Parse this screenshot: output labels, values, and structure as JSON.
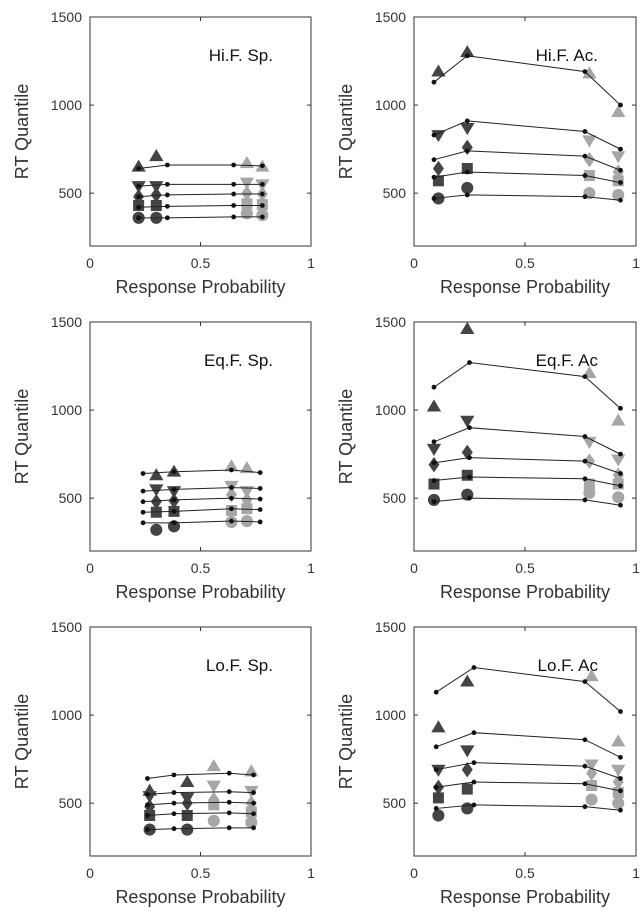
{
  "chart_data": [
    {
      "type": "scatter",
      "title": "Hi.F. Sp.",
      "xlabel": "Response Probability",
      "ylabel": "RT Quantile",
      "xlim": [
        0,
        1
      ],
      "ylim": [
        200,
        1500
      ],
      "xticks": [
        "0",
        "0.5",
        "1"
      ],
      "yticks": [
        "500",
        "1000",
        "1500"
      ],
      "model_x": [
        0.22,
        0.35,
        0.65,
        0.78
      ],
      "model_series": [
        {
          "values": [
            360,
            360,
            365,
            365
          ]
        },
        {
          "values": [
            420,
            425,
            430,
            430
          ]
        },
        {
          "values": [
            480,
            490,
            495,
            495
          ]
        },
        {
          "values": [
            540,
            550,
            550,
            550
          ]
        },
        {
          "values": [
            640,
            660,
            660,
            655
          ]
        }
      ],
      "data_series": [
        {
          "marker": "circle",
          "points": [
            [
              0.22,
              360
            ],
            [
              0.3,
              360
            ],
            [
              0.71,
              385
            ],
            [
              0.78,
              375
            ]
          ]
        },
        {
          "marker": "square",
          "points": [
            [
              0.22,
              430
            ],
            [
              0.3,
              430
            ],
            [
              0.71,
              440
            ],
            [
              0.78,
              435
            ]
          ]
        },
        {
          "marker": "diamond",
          "points": [
            [
              0.22,
              480
            ],
            [
              0.3,
              490
            ],
            [
              0.71,
              500
            ],
            [
              0.78,
              495
            ]
          ]
        },
        {
          "marker": "triangle-down",
          "points": [
            [
              0.22,
              540
            ],
            [
              0.3,
              540
            ],
            [
              0.71,
              560
            ],
            [
              0.78,
              550
            ]
          ]
        },
        {
          "marker": "triangle-up",
          "points": [
            [
              0.22,
              650
            ],
            [
              0.3,
              710
            ],
            [
              0.71,
              670
            ],
            [
              0.78,
              650
            ]
          ]
        }
      ]
    },
    {
      "type": "scatter",
      "title": "Hi.F. Ac.",
      "xlabel": "Response Probability",
      "ylabel": "RT Quantile",
      "xlim": [
        0,
        1
      ],
      "ylim": [
        200,
        1500
      ],
      "xticks": [
        "0",
        "0.5",
        "1"
      ],
      "yticks": [
        "500",
        "1000",
        "1500"
      ],
      "model_x": [
        0.09,
        0.24,
        0.77,
        0.93
      ],
      "model_series": [
        {
          "values": [
            470,
            490,
            480,
            460
          ]
        },
        {
          "values": [
            590,
            620,
            600,
            560
          ]
        },
        {
          "values": [
            690,
            740,
            710,
            630
          ]
        },
        {
          "values": [
            830,
            910,
            850,
            750
          ]
        },
        {
          "values": [
            1130,
            1280,
            1190,
            1000
          ]
        }
      ],
      "data_series": [
        {
          "marker": "circle",
          "points": [
            [
              0.11,
              470
            ],
            [
              0.24,
              530
            ],
            [
              0.79,
              500
            ],
            [
              0.92,
              490
            ]
          ]
        },
        {
          "marker": "square",
          "points": [
            [
              0.11,
              570
            ],
            [
              0.24,
              640
            ],
            [
              0.79,
              600
            ],
            [
              0.92,
              570
            ]
          ]
        },
        {
          "marker": "diamond",
          "points": [
            [
              0.11,
              640
            ],
            [
              0.24,
              760
            ],
            [
              0.79,
              690
            ],
            [
              0.92,
              620
            ]
          ]
        },
        {
          "marker": "triangle-down",
          "points": [
            [
              0.11,
              830
            ],
            [
              0.24,
              870
            ],
            [
              0.79,
              800
            ],
            [
              0.92,
              710
            ]
          ]
        },
        {
          "marker": "triangle-up",
          "points": [
            [
              0.11,
              1190
            ],
            [
              0.24,
              1300
            ],
            [
              0.79,
              1180
            ],
            [
              0.92,
              960
            ]
          ]
        }
      ]
    },
    {
      "type": "scatter",
      "title": "Eq.F. Sp.",
      "xlabel": "Response Probability",
      "ylabel": "RT Quantile",
      "xlim": [
        0,
        1
      ],
      "ylim": [
        200,
        1500
      ],
      "xticks": [
        "0",
        "0.5",
        "1"
      ],
      "yticks": [
        "500",
        "1000",
        "1500"
      ],
      "model_x": [
        0.24,
        0.38,
        0.64,
        0.77
      ],
      "model_series": [
        {
          "values": [
            360,
            360,
            370,
            365
          ]
        },
        {
          "values": [
            420,
            425,
            440,
            435
          ]
        },
        {
          "values": [
            480,
            490,
            500,
            495
          ]
        },
        {
          "values": [
            540,
            550,
            560,
            555
          ]
        },
        {
          "values": [
            640,
            650,
            660,
            645
          ]
        }
      ],
      "data_series": [
        {
          "marker": "circle",
          "points": [
            [
              0.3,
              320
            ],
            [
              0.38,
              340
            ],
            [
              0.64,
              365
            ],
            [
              0.71,
              370
            ]
          ]
        },
        {
          "marker": "square",
          "points": [
            [
              0.3,
              420
            ],
            [
              0.38,
              425
            ],
            [
              0.64,
              430
            ],
            [
              0.71,
              440
            ]
          ]
        },
        {
          "marker": "diamond",
          "points": [
            [
              0.3,
              480
            ],
            [
              0.38,
              485
            ],
            [
              0.64,
              520
            ],
            [
              0.71,
              490
            ]
          ]
        },
        {
          "marker": "triangle-down",
          "points": [
            [
              0.3,
              550
            ],
            [
              0.38,
              540
            ],
            [
              0.64,
              570
            ],
            [
              0.71,
              540
            ]
          ]
        },
        {
          "marker": "triangle-up",
          "points": [
            [
              0.3,
              630
            ],
            [
              0.38,
              650
            ],
            [
              0.64,
              680
            ],
            [
              0.71,
              670
            ]
          ]
        }
      ]
    },
    {
      "type": "scatter",
      "title": "Eq.F. Ac",
      "xlabel": "Response Probability",
      "ylabel": "RT Quantile",
      "xlim": [
        0,
        1
      ],
      "ylim": [
        200,
        1500
      ],
      "xticks": [
        "0",
        "0.5",
        "1"
      ],
      "yticks": [
        "500",
        "1000",
        "1500"
      ],
      "model_x": [
        0.09,
        0.25,
        0.77,
        0.93
      ],
      "model_series": [
        {
          "values": [
            480,
            500,
            490,
            460
          ]
        },
        {
          "values": [
            600,
            620,
            610,
            570
          ]
        },
        {
          "values": [
            700,
            730,
            710,
            640
          ]
        },
        {
          "values": [
            820,
            900,
            850,
            750
          ]
        },
        {
          "values": [
            1130,
            1270,
            1190,
            1010
          ]
        }
      ],
      "data_series": [
        {
          "marker": "circle",
          "points": [
            [
              0.09,
              490
            ],
            [
              0.24,
              520
            ],
            [
              0.79,
              530
            ],
            [
              0.92,
              505
            ]
          ]
        },
        {
          "marker": "square",
          "points": [
            [
              0.09,
              580
            ],
            [
              0.24,
              630
            ],
            [
              0.79,
              580
            ],
            [
              0.92,
              580
            ]
          ]
        },
        {
          "marker": "diamond",
          "points": [
            [
              0.09,
              690
            ],
            [
              0.24,
              760
            ],
            [
              0.79,
              710
            ],
            [
              0.92,
              630
            ]
          ]
        },
        {
          "marker": "triangle-down",
          "points": [
            [
              0.09,
              780
            ],
            [
              0.24,
              940
            ],
            [
              0.79,
              820
            ],
            [
              0.92,
              720
            ]
          ]
        },
        {
          "marker": "triangle-up",
          "points": [
            [
              0.09,
              1020
            ],
            [
              0.24,
              1460
            ],
            [
              0.79,
              1210
            ],
            [
              0.92,
              940
            ]
          ]
        }
      ]
    },
    {
      "type": "scatter",
      "title": "Lo.F. Sp.",
      "xlabel": "Response Probability",
      "ylabel": "RT Quantile",
      "xlim": [
        0,
        1
      ],
      "ylim": [
        200,
        1500
      ],
      "xticks": [
        "0",
        "0.5",
        "1"
      ],
      "yticks": [
        "500",
        "1000",
        "1500"
      ],
      "model_x": [
        0.26,
        0.38,
        0.63,
        0.74
      ],
      "model_series": [
        {
          "values": [
            350,
            355,
            360,
            360
          ]
        },
        {
          "values": [
            430,
            440,
            445,
            440
          ]
        },
        {
          "values": [
            490,
            500,
            505,
            500
          ]
        },
        {
          "values": [
            550,
            560,
            565,
            560
          ]
        },
        {
          "values": [
            640,
            660,
            670,
            660
          ]
        }
      ],
      "data_series": [
        {
          "marker": "circle",
          "points": [
            [
              0.27,
              350
            ],
            [
              0.44,
              350
            ],
            [
              0.56,
              400
            ],
            [
              0.73,
              390
            ]
          ]
        },
        {
          "marker": "square",
          "points": [
            [
              0.27,
              430
            ],
            [
              0.44,
              430
            ],
            [
              0.56,
              490
            ],
            [
              0.73,
              450
            ]
          ]
        },
        {
          "marker": "diamond",
          "points": [
            [
              0.27,
              480
            ],
            [
              0.44,
              500
            ],
            [
              0.56,
              520
            ],
            [
              0.73,
              500
            ]
          ]
        },
        {
          "marker": "triangle-down",
          "points": [
            [
              0.27,
              540
            ],
            [
              0.44,
              530
            ],
            [
              0.56,
              600
            ],
            [
              0.73,
              570
            ]
          ]
        },
        {
          "marker": "triangle-up",
          "points": [
            [
              0.27,
              570
            ],
            [
              0.44,
              620
            ],
            [
              0.56,
              710
            ],
            [
              0.73,
              680
            ]
          ]
        }
      ]
    },
    {
      "type": "scatter",
      "title": "Lo.F. Ac",
      "xlabel": "Response Probability",
      "ylabel": "RT Quantile",
      "xlim": [
        0,
        1
      ],
      "ylim": [
        200,
        1500
      ],
      "xticks": [
        "0",
        "0.5",
        "1"
      ],
      "yticks": [
        "500",
        "1000",
        "1500"
      ],
      "model_x": [
        0.1,
        0.27,
        0.77,
        0.93
      ],
      "model_series": [
        {
          "values": [
            470,
            490,
            480,
            460
          ]
        },
        {
          "values": [
            590,
            620,
            610,
            570
          ]
        },
        {
          "values": [
            690,
            730,
            710,
            640
          ]
        },
        {
          "values": [
            820,
            900,
            860,
            760
          ]
        },
        {
          "values": [
            1130,
            1270,
            1190,
            1020
          ]
        }
      ],
      "data_series": [
        {
          "marker": "circle",
          "points": [
            [
              0.11,
              430
            ],
            [
              0.24,
              470
            ],
            [
              0.8,
              520
            ],
            [
              0.92,
              500
            ]
          ]
        },
        {
          "marker": "square",
          "points": [
            [
              0.11,
              530
            ],
            [
              0.24,
              580
            ],
            [
              0.8,
              600
            ],
            [
              0.92,
              560
            ]
          ]
        },
        {
          "marker": "diamond",
          "points": [
            [
              0.11,
              590
            ],
            [
              0.24,
              690
            ],
            [
              0.8,
              670
            ],
            [
              0.92,
              620
            ]
          ]
        },
        {
          "marker": "triangle-down",
          "points": [
            [
              0.11,
              690
            ],
            [
              0.24,
              800
            ],
            [
              0.8,
              720
            ],
            [
              0.92,
              690
            ]
          ]
        },
        {
          "marker": "triangle-up",
          "points": [
            [
              0.11,
              930
            ],
            [
              0.24,
              1190
            ],
            [
              0.8,
              1220
            ],
            [
              0.92,
              850
            ]
          ]
        }
      ]
    }
  ],
  "colors": {
    "dark_marker": "#444444",
    "light_marker": "#a6a6a6",
    "model_line": "#222222",
    "axis": "#333333"
  }
}
